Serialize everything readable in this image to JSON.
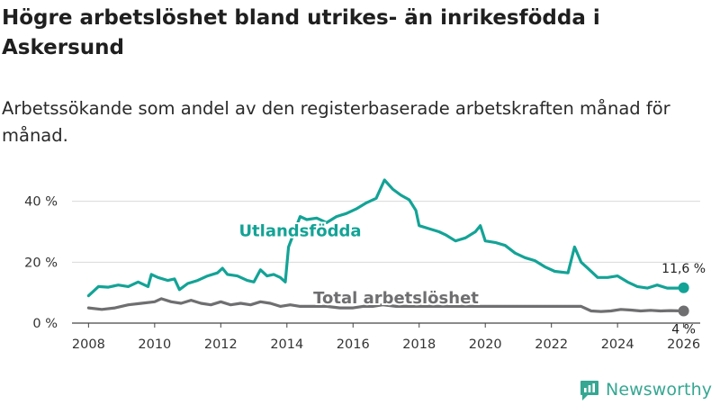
{
  "title": "Högre arbetslöshet bland utrikes- än inrikesfödda i Askersund",
  "subtitle": "Arbetssökande som andel av den registerbaserade arbetskraften månad för månad.",
  "brand": {
    "name": "Newsworthy",
    "icon": "newsworthy-logo-icon",
    "color": "#36a792"
  },
  "chart_data": {
    "type": "line",
    "title": "Högre arbetslöshet bland utrikes- än inrikesfödda i Askersund",
    "xlabel": "",
    "ylabel": "",
    "xlim": [
      2007.5,
      2026.5
    ],
    "ylim": [
      0,
      47
    ],
    "grid": true,
    "x_ticks": [
      2008,
      2010,
      2012,
      2014,
      2016,
      2018,
      2020,
      2022,
      2024,
      2026
    ],
    "x_tick_labels": [
      "2008",
      "2010",
      "2012",
      "2014",
      "2016",
      "2018",
      "2020",
      "2022",
      "2024",
      "2026"
    ],
    "y_ticks": [
      0,
      20,
      40
    ],
    "y_tick_labels": [
      "0 %",
      "20 %",
      "40 %"
    ],
    "series": [
      {
        "name": "Utlandsfödda",
        "color": "#13a396",
        "end_label": "11,6 %",
        "points": [
          [
            2008.0,
            9
          ],
          [
            2008.3,
            12
          ],
          [
            2008.6,
            11.8
          ],
          [
            2008.9,
            12.5
          ],
          [
            2009.2,
            12
          ],
          [
            2009.5,
            13.5
          ],
          [
            2009.8,
            12
          ],
          [
            2009.9,
            16
          ],
          [
            2010.1,
            15
          ],
          [
            2010.4,
            14
          ],
          [
            2010.6,
            14.5
          ],
          [
            2010.75,
            11
          ],
          [
            2011.0,
            13
          ],
          [
            2011.3,
            14
          ],
          [
            2011.6,
            15.5
          ],
          [
            2011.9,
            16.5
          ],
          [
            2012.05,
            18
          ],
          [
            2012.2,
            16
          ],
          [
            2012.5,
            15.5
          ],
          [
            2012.8,
            14
          ],
          [
            2013.0,
            13.5
          ],
          [
            2013.2,
            17.5
          ],
          [
            2013.4,
            15.5
          ],
          [
            2013.6,
            16
          ],
          [
            2013.8,
            15
          ],
          [
            2013.95,
            13.5
          ],
          [
            2014.05,
            25
          ],
          [
            2014.4,
            35
          ],
          [
            2014.6,
            34
          ],
          [
            2014.9,
            34.5
          ],
          [
            2015.2,
            33
          ],
          [
            2015.5,
            35
          ],
          [
            2015.8,
            36
          ],
          [
            2016.1,
            37.5
          ],
          [
            2016.4,
            39.5
          ],
          [
            2016.7,
            41
          ],
          [
            2016.95,
            47
          ],
          [
            2017.2,
            44
          ],
          [
            2017.45,
            42
          ],
          [
            2017.7,
            40.5
          ],
          [
            2017.9,
            37
          ],
          [
            2018.0,
            32
          ],
          [
            2018.3,
            31
          ],
          [
            2018.6,
            30
          ],
          [
            2018.8,
            29
          ],
          [
            2019.1,
            27
          ],
          [
            2019.4,
            28
          ],
          [
            2019.7,
            30
          ],
          [
            2019.85,
            32
          ],
          [
            2020.0,
            27
          ],
          [
            2020.3,
            26.5
          ],
          [
            2020.6,
            25.5
          ],
          [
            2020.9,
            23
          ],
          [
            2021.2,
            21.5
          ],
          [
            2021.5,
            20.5
          ],
          [
            2021.8,
            18.5
          ],
          [
            2022.1,
            17
          ],
          [
            2022.5,
            16.5
          ],
          [
            2022.7,
            25
          ],
          [
            2022.9,
            20
          ],
          [
            2023.1,
            18
          ],
          [
            2023.4,
            15
          ],
          [
            2023.7,
            15
          ],
          [
            2024.0,
            15.5
          ],
          [
            2024.3,
            13.5
          ],
          [
            2024.6,
            12
          ],
          [
            2024.9,
            11.5
          ],
          [
            2025.2,
            12.5
          ],
          [
            2025.5,
            11.5
          ],
          [
            2025.8,
            11.5
          ],
          [
            2026.0,
            11.6
          ]
        ]
      },
      {
        "name": "Total arbetslöshet",
        "color": "#6f6e70",
        "end_label": "4 %",
        "points": [
          [
            2008.0,
            5
          ],
          [
            2008.4,
            4.5
          ],
          [
            2008.8,
            5
          ],
          [
            2009.2,
            6
          ],
          [
            2009.6,
            6.5
          ],
          [
            2010.0,
            7
          ],
          [
            2010.2,
            8
          ],
          [
            2010.5,
            7
          ],
          [
            2010.8,
            6.5
          ],
          [
            2011.1,
            7.5
          ],
          [
            2011.4,
            6.5
          ],
          [
            2011.7,
            6
          ],
          [
            2012.0,
            7
          ],
          [
            2012.3,
            6
          ],
          [
            2012.6,
            6.5
          ],
          [
            2012.9,
            6
          ],
          [
            2013.2,
            7
          ],
          [
            2013.5,
            6.5
          ],
          [
            2013.8,
            5.5
          ],
          [
            2014.1,
            6
          ],
          [
            2014.4,
            5.5
          ],
          [
            2014.8,
            5.5
          ],
          [
            2015.2,
            5.5
          ],
          [
            2015.6,
            5
          ],
          [
            2016.0,
            5
          ],
          [
            2016.3,
            5.5
          ],
          [
            2016.6,
            5.5
          ],
          [
            2016.9,
            6
          ],
          [
            2017.3,
            5.5
          ],
          [
            2022.9,
            5.5
          ],
          [
            2023.2,
            4
          ],
          [
            2023.5,
            3.8
          ],
          [
            2023.8,
            4
          ],
          [
            2024.1,
            4.5
          ],
          [
            2024.4,
            4.3
          ],
          [
            2024.7,
            4
          ],
          [
            2025.0,
            4.2
          ],
          [
            2025.3,
            4
          ],
          [
            2025.6,
            4.1
          ],
          [
            2026.0,
            4
          ]
        ]
      }
    ],
    "annotations": [
      {
        "text": "Utlandsfödda",
        "series": "Utlandsfödda",
        "x": 2014.4,
        "y": 28.5
      },
      {
        "text": "Total arbetslöshet",
        "series": "Total arbetslöshet",
        "x": 2017.3,
        "y": 6.5
      }
    ]
  }
}
